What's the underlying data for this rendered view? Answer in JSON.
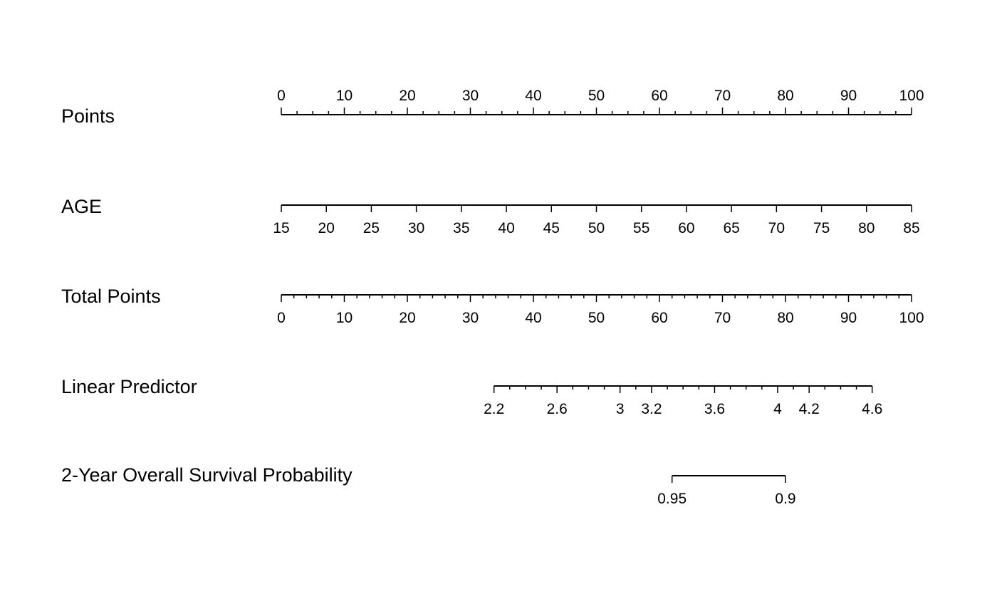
{
  "chart_data": {
    "type": "nomogram",
    "title": "",
    "scales": [
      {
        "id": "points",
        "label": "Points",
        "range": [
          0,
          100
        ],
        "tick_labels": [
          "0",
          "10",
          "20",
          "30",
          "40",
          "50",
          "60",
          "70",
          "80",
          "90",
          "100"
        ],
        "tick_values": [
          0,
          10,
          20,
          30,
          40,
          50,
          60,
          70,
          80,
          90,
          100
        ],
        "minor_step": 2.5,
        "label_side": "above",
        "map_to_points": [
          0,
          100
        ]
      },
      {
        "id": "age",
        "label": "AGE",
        "range": [
          15,
          85
        ],
        "tick_labels": [
          "15",
          "20",
          "25",
          "30",
          "35",
          "40",
          "45",
          "50",
          "55",
          "60",
          "65",
          "70",
          "75",
          "80",
          "85"
        ],
        "tick_values": [
          15,
          20,
          25,
          30,
          35,
          40,
          45,
          50,
          55,
          60,
          65,
          70,
          75,
          80,
          85
        ],
        "minor_step": null,
        "label_side": "below",
        "map_to_points": [
          0,
          100
        ]
      },
      {
        "id": "total-points",
        "label": "Total Points",
        "range": [
          0,
          100
        ],
        "tick_labels": [
          "0",
          "10",
          "20",
          "30",
          "40",
          "50",
          "60",
          "70",
          "80",
          "90",
          "100"
        ],
        "tick_values": [
          0,
          10,
          20,
          30,
          40,
          50,
          60,
          70,
          80,
          90,
          100
        ],
        "minor_step": 2,
        "label_side": "below",
        "map_to_points": [
          0,
          100
        ]
      },
      {
        "id": "linear-predictor",
        "label": "Linear Predictor",
        "range": [
          2.2,
          4.6
        ],
        "tick_labels": [
          "2.2",
          "2.6",
          "3",
          "3.2",
          "3.6",
          "4",
          "4.2",
          "4.6"
        ],
        "tick_values": [
          2.2,
          2.6,
          3.0,
          3.2,
          3.6,
          4.0,
          4.2,
          4.6
        ],
        "minor_step": 0.1,
        "label_side": "below",
        "map_to_points": [
          33.75,
          93.75
        ]
      },
      {
        "id": "survival-probability",
        "label": "2-Year Overall Survival Probability",
        "range": [
          0.95,
          0.9
        ],
        "tick_labels": [
          "0.95",
          "0.9"
        ],
        "tick_values": [
          0.95,
          0.9
        ],
        "minor_step": null,
        "label_side": "below",
        "map_to_points": [
          62,
          80
        ]
      }
    ]
  }
}
